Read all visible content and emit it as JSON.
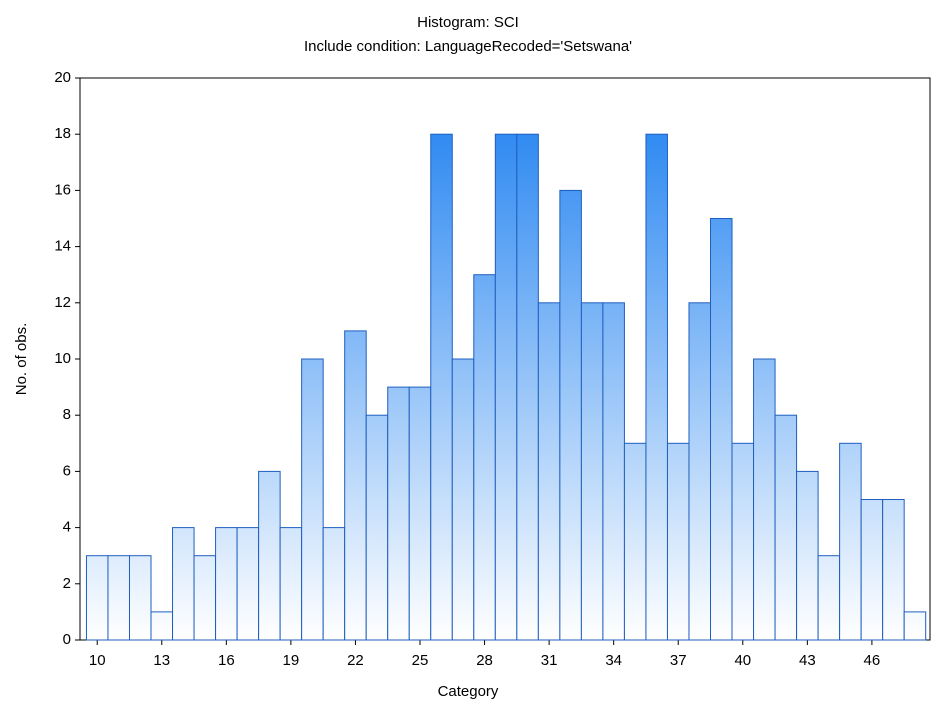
{
  "chart_data": {
    "type": "histogram",
    "title": "Histogram: SCI",
    "subtitle": "Include condition: LanguageRecoded='Setswana'",
    "x_label": "Category",
    "y_label": "No. of obs.",
    "bins": [
      9.5,
      10.5,
      11.5,
      12.5,
      13.5,
      14.5,
      15.5,
      16.5,
      17.5,
      18.5,
      19.5,
      20.5,
      21.5,
      22.5,
      23.5,
      24.5,
      25.5,
      26.5,
      27.5,
      28.5,
      29.5,
      30.5,
      31.5,
      32.5,
      33.5,
      34.5,
      35.5,
      36.5,
      37.5,
      38.5,
      39.5,
      40.5,
      41.5,
      42.5,
      43.5,
      44.5,
      45.5,
      46.5,
      47.5,
      48.5
    ],
    "values": [
      3,
      3,
      3,
      1,
      4,
      3,
      4,
      4,
      6,
      4,
      10,
      4,
      11,
      8,
      9,
      9,
      18,
      10,
      13,
      18,
      18,
      12,
      16,
      12,
      12,
      7,
      18,
      7,
      12,
      15,
      7,
      10,
      8,
      6,
      3,
      7,
      5,
      5,
      1
    ],
    "color": "#1a7ef0",
    "xlim": [
      9.2,
      48.7
    ],
    "xticks": [
      10,
      13,
      16,
      19,
      22,
      25,
      28,
      31,
      34,
      37,
      40,
      43,
      46
    ],
    "ylim": [
      0,
      20
    ],
    "yticks": [
      0,
      2,
      4,
      6,
      8,
      10,
      12,
      14,
      16,
      18,
      20
    ],
    "grid": false
  }
}
